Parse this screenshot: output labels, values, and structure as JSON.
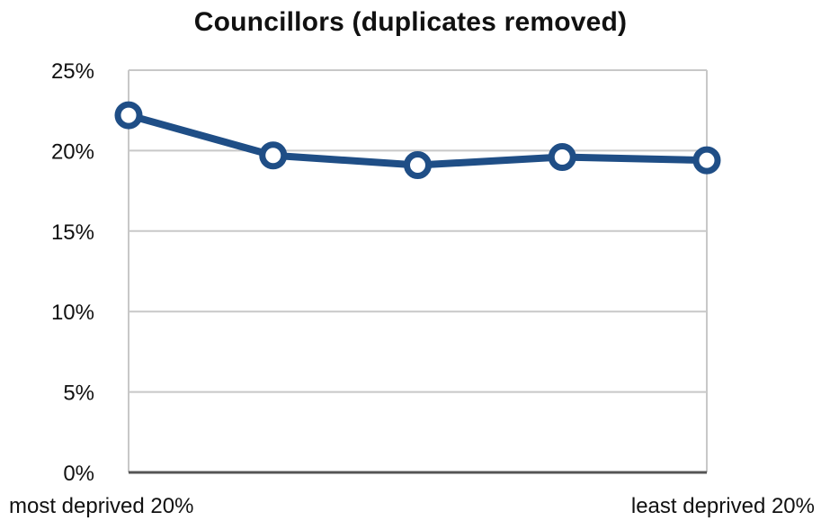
{
  "chart_data": {
    "type": "line",
    "title": "Councillors (duplicates removed)",
    "x": [
      "most deprived 20%",
      "",
      "",
      "",
      "least deprived 20%"
    ],
    "series": [
      {
        "values": [
          22.2,
          19.7,
          19.1,
          19.6,
          19.4
        ]
      }
    ],
    "ylim": [
      0,
      25
    ],
    "yticks": [
      0,
      5,
      10,
      15,
      20,
      25
    ],
    "ytick_labels": [
      "0%",
      "5%",
      "10%",
      "15%",
      "20%",
      "25%"
    ],
    "xlabel": "",
    "ylabel": "",
    "grid": true,
    "legend": "none",
    "colors": {
      "line": "#1f4e86",
      "marker_fill": "#ffffff",
      "grid": "#c8c8c8",
      "axis": "#555555",
      "text": "#111111"
    }
  }
}
